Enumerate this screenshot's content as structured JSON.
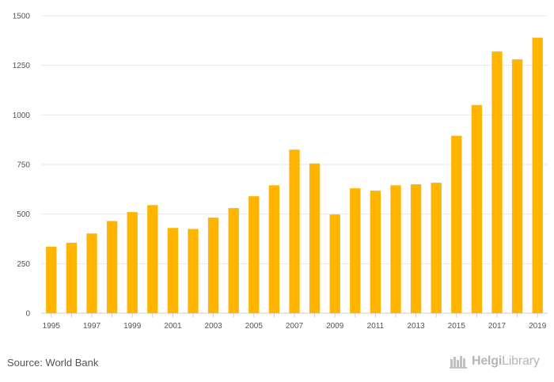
{
  "chart_data": {
    "type": "bar",
    "title": "",
    "xlabel": "",
    "ylabel": "",
    "categories": [
      "1995",
      "1996",
      "1997",
      "1998",
      "1999",
      "2000",
      "2001",
      "2002",
      "2003",
      "2004",
      "2005",
      "2006",
      "2007",
      "2008",
      "2009",
      "2010",
      "2011",
      "2012",
      "2013",
      "2014",
      "2015",
      "2016",
      "2017",
      "2018",
      "2019"
    ],
    "values": [
      335,
      355,
      402,
      465,
      510,
      545,
      430,
      425,
      482,
      530,
      590,
      645,
      825,
      755,
      498,
      630,
      618,
      645,
      650,
      658,
      895,
      1050,
      1320,
      1280,
      1390
    ],
    "ylim": [
      0,
      1500
    ],
    "yticks": [
      0,
      250,
      500,
      750,
      1000,
      1250,
      1500
    ],
    "xtick_labels": [
      "1995",
      "1997",
      "1999",
      "2001",
      "2003",
      "2005",
      "2007",
      "2009",
      "2011",
      "2013",
      "2015",
      "2017",
      "2019"
    ],
    "bar_color": "#FFB400",
    "grid": true
  },
  "footer": {
    "source": "Source: World Bank",
    "brand_a": "Helgi",
    "brand_b": "Library"
  }
}
